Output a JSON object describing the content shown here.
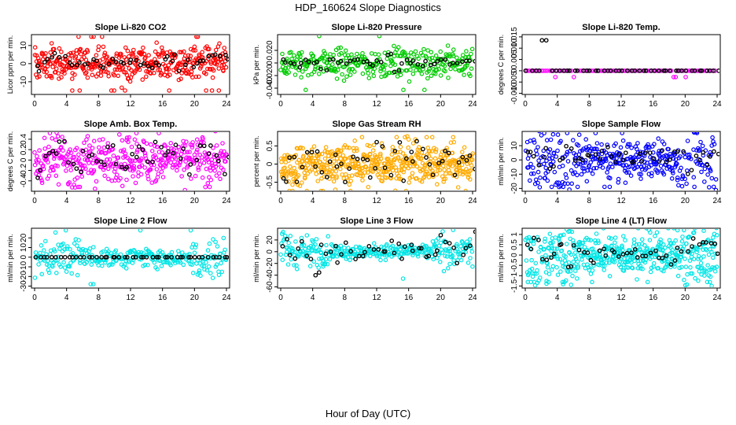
{
  "page": {
    "title": "HDP_160624  Slope Diagnostics",
    "xlabel": "Hour of Day (UTC)"
  },
  "chart_data": [
    {
      "type": "scatter",
      "title": "Slope Li-820 CO2",
      "ylabel": "Licor ppm per min.",
      "xlim": [
        0,
        24
      ],
      "xticks": [
        0,
        4,
        8,
        12,
        16,
        20,
        24
      ],
      "ylim": [
        -17,
        16
      ],
      "yticks": [
        -10,
        0,
        10
      ],
      "color": "#ff0000",
      "amp": 4.5,
      "n": 420,
      "ref_amp": 1.5,
      "hourly_ref": [
        -2,
        1,
        3,
        2,
        0,
        -1,
        1,
        2,
        -2,
        0,
        1,
        -1,
        2,
        1,
        -1,
        0,
        2,
        1,
        -3,
        0,
        1,
        2,
        3,
        4,
        2
      ]
    },
    {
      "type": "scatter",
      "title": "Slope Li-820 Pressure",
      "ylabel": "kPa per min.",
      "xlim": [
        0,
        24
      ],
      "xticks": [
        0,
        4,
        8,
        12,
        16,
        20,
        24
      ],
      "ylim": [
        -0.05,
        0.045
      ],
      "yticks": [
        -0.04,
        -0.02,
        0.0,
        0.02
      ],
      "color": "#00cc00",
      "amp": 0.012,
      "n": 330,
      "ref_amp": 0.003,
      "hourly_ref": [
        0,
        0.002,
        -0.003,
        0.005,
        0,
        -0.01,
        0.004,
        0,
        -0.002,
        0.003,
        0,
        -0.004,
        0,
        0.01,
        -0.01,
        0.004,
        0,
        -0.003,
        0.002,
        0,
        0.005,
        -0.002,
        0,
        0.002,
        0
      ]
    },
    {
      "type": "scatter",
      "title": "Slope Li-820 Temp.",
      "ylabel": "degrees C per min.",
      "xlim": [
        0,
        24
      ],
      "xticks": [
        0,
        4,
        8,
        12,
        16,
        20,
        24
      ],
      "ylim": [
        -0.0105,
        0.016
      ],
      "yticks": [
        -0.01,
        -0.005,
        0.0,
        0.005,
        0.01,
        0.015
      ],
      "color": "#ff00ff",
      "amp": 0.0,
      "n": 96,
      "ref_amp": 0.0,
      "hourly_ref": [
        0,
        0,
        0.0135,
        0,
        0,
        0,
        0,
        0,
        0,
        0,
        0,
        0,
        0,
        0,
        0,
        0,
        0,
        0,
        0,
        0,
        0,
        0,
        0,
        0,
        0
      ]
    },
    {
      "type": "scatter",
      "title": "Slope Amb. Box Temp.",
      "ylabel": "degrees C per min.",
      "xlim": [
        0,
        24
      ],
      "xticks": [
        0,
        4,
        8,
        12,
        16,
        20,
        24
      ],
      "ylim": [
        -0.6,
        0.55
      ],
      "yticks": [
        -0.4,
        -0.2,
        0.0,
        0.2,
        0.4
      ],
      "color": "#ff00ff",
      "amp": 0.22,
      "n": 430,
      "ref_amp": 0.1,
      "hourly_ref": [
        -0.2,
        0.1,
        0.2,
        0.3,
        0.1,
        -0.3,
        0.2,
        0.1,
        -0.1,
        0.2,
        0.0,
        -0.2,
        0.1,
        0.2,
        0.0,
        0.3,
        0.1,
        0.2,
        0.0,
        -0.2,
        0.1,
        0.2,
        0.1,
        0.0,
        0.2
      ]
    },
    {
      "type": "scatter",
      "title": "Slope Gas Stream RH",
      "ylabel": "percent per min.",
      "xlim": [
        0,
        24
      ],
      "xticks": [
        0,
        4,
        8,
        12,
        16,
        20,
        24
      ],
      "ylim": [
        -0.75,
        0.9
      ],
      "yticks": [
        -0.5,
        0.0,
        0.5
      ],
      "color": "#ffaa00",
      "amp": 0.28,
      "n": 520,
      "ref_amp": 0.2,
      "hourly_ref": [
        -0.3,
        0.2,
        -0.1,
        0.1,
        0.3,
        -0.2,
        0.2,
        0.0,
        -0.2,
        0.2,
        0.1,
        -0.1,
        0.2,
        0.0,
        0.3,
        -0.2,
        0.1,
        0.5,
        0.1,
        -0.2,
        0.2,
        0.0,
        0.3,
        0.2,
        -0.1
      ]
    },
    {
      "type": "scatter",
      "title": "Slope Sample Flow",
      "ylabel": "ml/min per min.",
      "xlim": [
        0,
        24
      ],
      "xticks": [
        0,
        4,
        8,
        12,
        16,
        20,
        24
      ],
      "ylim": [
        -22,
        20
      ],
      "yticks": [
        -20,
        -10,
        0,
        10
      ],
      "color": "#0000ff",
      "amp": 7,
      "n": 430,
      "ref_amp": 3,
      "hourly_ref": [
        5,
        2,
        8,
        -3,
        5,
        10,
        2,
        1,
        4,
        2,
        1,
        0,
        2,
        1,
        3,
        1,
        0,
        2,
        1,
        3,
        -5,
        2,
        3,
        4,
        1
      ]
    },
    {
      "type": "scatter",
      "title": "Slope Line 2 Flow",
      "ylabel": "ml/min per min.",
      "xlim": [
        0,
        24
      ],
      "xticks": [
        0,
        4,
        8,
        12,
        16,
        20,
        24
      ],
      "ylim": [
        -32,
        30
      ],
      "yticks": [
        -30,
        -20,
        -10,
        0,
        10,
        20
      ],
      "color": "#00e5e5",
      "amp": 5,
      "n": 300,
      "ref_amp": 0,
      "hourly_ref": [
        0,
        0,
        0,
        0,
        0,
        0,
        0,
        0,
        0,
        0,
        0,
        0,
        0,
        0,
        0,
        0,
        0,
        0,
        0,
        0,
        0,
        0,
        0,
        0,
        0
      ]
    },
    {
      "type": "scatter",
      "title": "Slope Line 3 Flow",
      "ylabel": "ml/min per min.",
      "xlim": [
        0,
        24
      ],
      "xticks": [
        0,
        4,
        8,
        12,
        16,
        20,
        24
      ],
      "ylim": [
        -62,
        40
      ],
      "yticks": [
        -60,
        -40,
        -20,
        0,
        20
      ],
      "color": "#00e5e5",
      "amp": 6,
      "n": 330,
      "ref_amp": 8,
      "hourly_ref": [
        10,
        -5,
        15,
        -10,
        -40,
        5,
        0,
        -5,
        3,
        0,
        -5,
        2,
        0,
        0,
        2,
        0,
        -3,
        2,
        0,
        5,
        20,
        10,
        -5,
        15,
        30
      ]
    },
    {
      "type": "scatter",
      "title": "Slope Line 4 (LT) Flow",
      "ylabel": "ml/min per min.",
      "xlim": [
        0,
        24
      ],
      "xticks": [
        0,
        4,
        8,
        12,
        16,
        20,
        24
      ],
      "ylim": [
        -1.6,
        1.3
      ],
      "yticks": [
        -1.5,
        -1.0,
        -0.5,
        0.0,
        0.5,
        1.0
      ],
      "color": "#00e5e5",
      "amp": 0.45,
      "n": 520,
      "ref_amp": 0.15,
      "hourly_ref": [
        0.5,
        0.8,
        -0.3,
        0.2,
        0.6,
        -0.5,
        0.3,
        0.0,
        -0.2,
        0.2,
        0.0,
        -0.1,
        0.1,
        0.2,
        0.0,
        -0.1,
        0.1,
        0.0,
        -0.3,
        0.2,
        0.4,
        0.8,
        0.5,
        0.6,
        0.2
      ]
    }
  ]
}
